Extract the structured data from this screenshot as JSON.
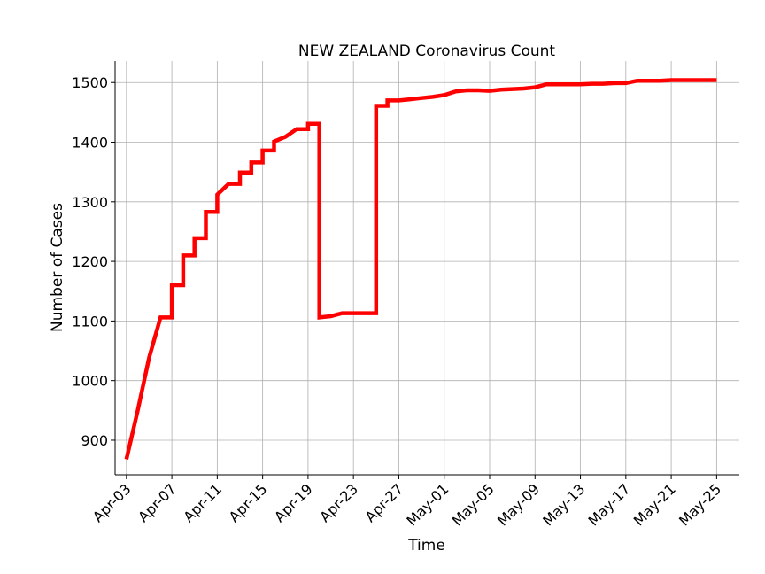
{
  "chart_data": {
    "type": "line",
    "title": "NEW ZEALAND Coronavirus Count",
    "xlabel": "Time",
    "ylabel": "Number of Cases",
    "x_ticks": [
      "Apr-03",
      "Apr-07",
      "Apr-11",
      "Apr-15",
      "Apr-19",
      "Apr-23",
      "Apr-27",
      "May-01",
      "May-05",
      "May-09",
      "May-13",
      "May-17",
      "May-21",
      "May-25"
    ],
    "y_ticks": [
      900,
      1000,
      1100,
      1200,
      1300,
      1400,
      1500
    ],
    "xlim": [
      "2020-04-02",
      "2020-05-27"
    ],
    "ylim": [
      842,
      1536
    ],
    "grid": true,
    "line_color": "#ff0000",
    "series": [
      {
        "x": [
          "2020-04-03",
          "2020-04-04",
          "2020-04-05",
          "2020-04-06",
          "2020-04-07",
          "2020-04-07",
          "2020-04-08",
          "2020-04-08",
          "2020-04-09",
          "2020-04-09",
          "2020-04-10",
          "2020-04-10",
          "2020-04-11",
          "2020-04-11",
          "2020-04-12",
          "2020-04-13",
          "2020-04-13",
          "2020-04-14",
          "2020-04-14",
          "2020-04-15",
          "2020-04-15",
          "2020-04-16",
          "2020-04-16",
          "2020-04-17",
          "2020-04-18",
          "2020-04-19",
          "2020-04-19",
          "2020-04-20",
          "2020-04-20",
          "2020-04-21",
          "2020-04-22",
          "2020-04-23",
          "2020-04-24",
          "2020-04-25",
          "2020-04-25",
          "2020-04-26",
          "2020-04-26",
          "2020-04-27",
          "2020-04-28",
          "2020-04-29",
          "2020-04-30",
          "2020-05-01",
          "2020-05-02",
          "2020-05-03",
          "2020-05-04",
          "2020-05-05",
          "2020-05-06",
          "2020-05-07",
          "2020-05-08",
          "2020-05-09",
          "2020-05-10",
          "2020-05-11",
          "2020-05-12",
          "2020-05-13",
          "2020-05-14",
          "2020-05-15",
          "2020-05-16",
          "2020-05-17",
          "2020-05-18",
          "2020-05-19",
          "2020-05-20",
          "2020-05-21",
          "2020-05-22",
          "2020-05-23",
          "2020-05-24",
          "2020-05-25"
        ],
        "y": [
          868,
          950,
          1039,
          1106,
          1106,
          1160,
          1160,
          1210,
          1210,
          1239,
          1239,
          1283,
          1283,
          1312,
          1330,
          1330,
          1349,
          1349,
          1366,
          1366,
          1386,
          1386,
          1401,
          1409,
          1422,
          1422,
          1431,
          1431,
          1106,
          1108,
          1113,
          1113,
          1113,
          1113,
          1461,
          1461,
          1470,
          1470,
          1472,
          1474,
          1476,
          1479,
          1485,
          1487,
          1487,
          1486,
          1488,
          1489,
          1490,
          1492,
          1497,
          1497,
          1497,
          1497,
          1498,
          1498,
          1499,
          1499,
          1503,
          1503,
          1503,
          1504,
          1504,
          1504,
          1504,
          1504
        ]
      }
    ]
  }
}
